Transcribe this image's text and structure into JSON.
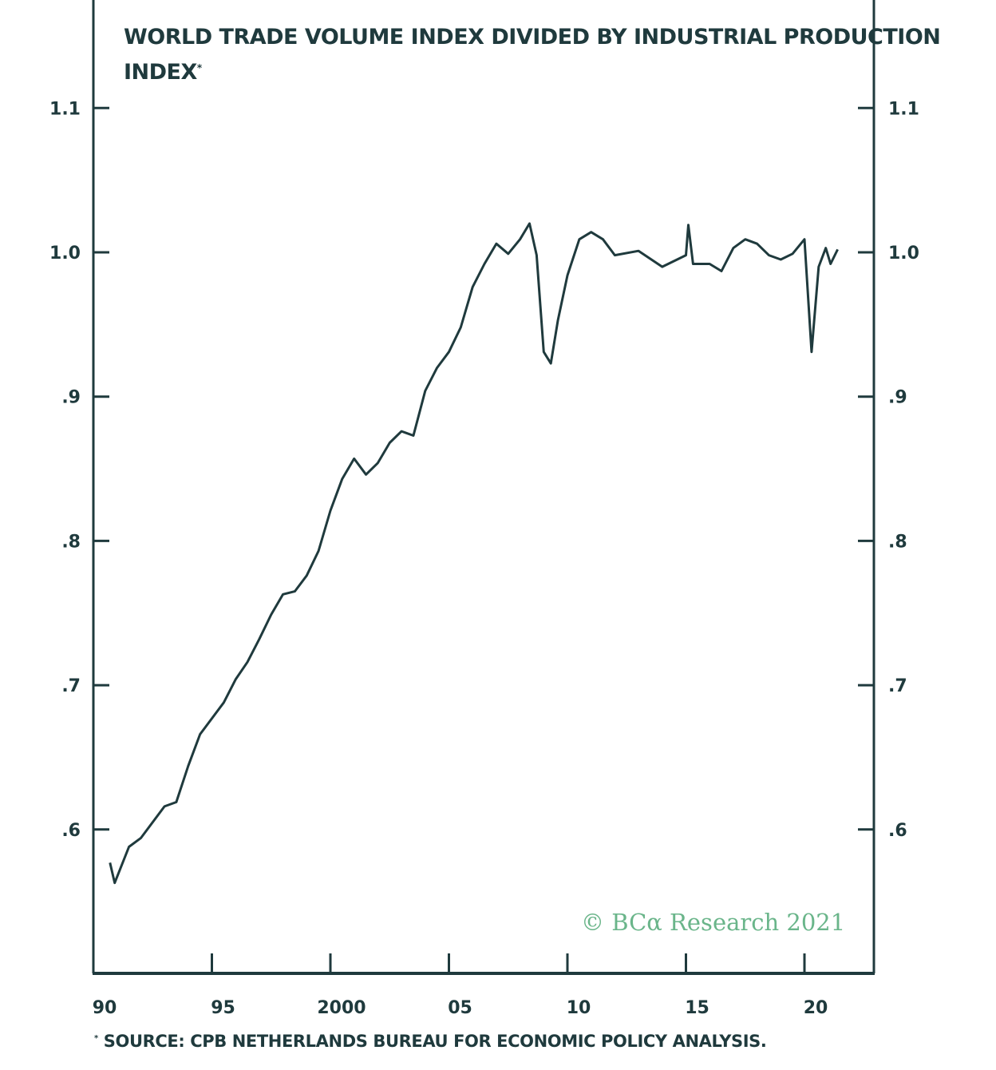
{
  "chart_data": {
    "type": "line",
    "title": "WORLD TRADE VOLUME INDEX DIVIDED BY INDUSTRIAL PRODUCTION INDEX",
    "title_marker": "*",
    "footnote": "SOURCE: CPB NETHERLANDS BUREAU FOR ECONOMIC POLICY ANALYSIS.",
    "footnote_marker": "*",
    "watermark": "© BCα Research 2021",
    "xlabel": "",
    "ylabel": "",
    "xlim": [
      1990,
      2023
    ],
    "ylim": [
      0.5,
      1.15
    ],
    "x_ticks": [
      1990,
      1995,
      2000,
      2005,
      2010,
      2015,
      2020
    ],
    "x_tick_labels": [
      "90",
      "95",
      "2000",
      "05",
      "10",
      "15",
      "20"
    ],
    "y_ticks": [
      0.6,
      0.7,
      0.8,
      0.9,
      1.0,
      1.1
    ],
    "y_tick_labels": [
      ".6",
      ".7",
      ".8",
      ".9",
      "1.0",
      "1.1"
    ],
    "y_axes": [
      "left",
      "right"
    ],
    "grid": false,
    "legend": "none",
    "colors": {
      "line": "#1f3a3d",
      "watermark": "#6ab58a",
      "axis": "#1f3a3d"
    },
    "series": [
      {
        "x": [
          1990.7,
          1990.9,
          1991.5,
          1992,
          1993,
          1993.5,
          1994,
          1994.5,
          1995.5,
          1996,
          1996.5,
          1997,
          1997.5,
          1998,
          1998.5,
          1999,
          1999.5,
          2000,
          2000.5,
          2001,
          2001.5,
          2002,
          2002.5,
          2003,
          2003.5,
          2004,
          2004.5,
          2005,
          2005.5,
          2006,
          2006.5,
          2007,
          2007.5,
          2008,
          2008.4,
          2008.7,
          2009.0,
          2009.3,
          2009.6,
          2010,
          2010.5,
          2011,
          2011.5,
          2012,
          2013,
          2014,
          2015,
          2015.1,
          2015.3,
          2016,
          2016.5,
          2017,
          2017.5,
          2018,
          2018.5,
          2019,
          2019.5,
          2020.0,
          2020.3,
          2020.6,
          2020.9,
          2021.1,
          2021.4
        ],
        "y": [
          0.577,
          0.563,
          0.588,
          0.594,
          0.616,
          0.619,
          0.644,
          0.666,
          0.688,
          0.704,
          0.716,
          0.732,
          0.749,
          0.763,
          0.765,
          0.776,
          0.793,
          0.821,
          0.843,
          0.857,
          0.846,
          0.854,
          0.868,
          0.876,
          0.873,
          0.904,
          0.92,
          0.931,
          0.948,
          0.976,
          0.992,
          1.006,
          0.999,
          1.009,
          1.02,
          0.998,
          0.931,
          0.923,
          0.953,
          0.984,
          1.009,
          1.014,
          1.009,
          0.998,
          1.001,
          0.99,
          0.998,
          1.019,
          0.992,
          0.992,
          0.987,
          1.003,
          1.009,
          1.006,
          0.998,
          0.995,
          0.999,
          1.009,
          0.931,
          0.99,
          1.003,
          0.992,
          1.002
        ]
      }
    ]
  }
}
